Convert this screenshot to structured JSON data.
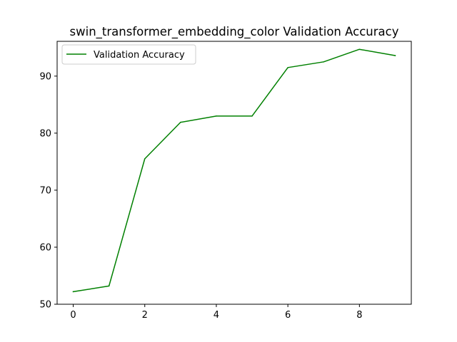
{
  "chart_data": {
    "type": "line",
    "title": "swin_transformer_embedding_color Validation Accuracy",
    "xlabel": "",
    "ylabel": "",
    "xlim": [
      -0.45,
      9.45
    ],
    "ylim": [
      50,
      96.1
    ],
    "x_ticks": [
      0,
      2,
      4,
      6,
      8
    ],
    "y_ticks": [
      50,
      60,
      70,
      80,
      90
    ],
    "grid": false,
    "legend_position": "top-left",
    "series": [
      {
        "name": "Validation Accuracy",
        "color": "#008000",
        "x": [
          0,
          1,
          2,
          3,
          4,
          5,
          6,
          7,
          8,
          9
        ],
        "y": [
          52.2,
          53.2,
          75.5,
          81.9,
          83.0,
          83.0,
          91.5,
          92.5,
          94.7,
          93.6
        ]
      }
    ]
  }
}
